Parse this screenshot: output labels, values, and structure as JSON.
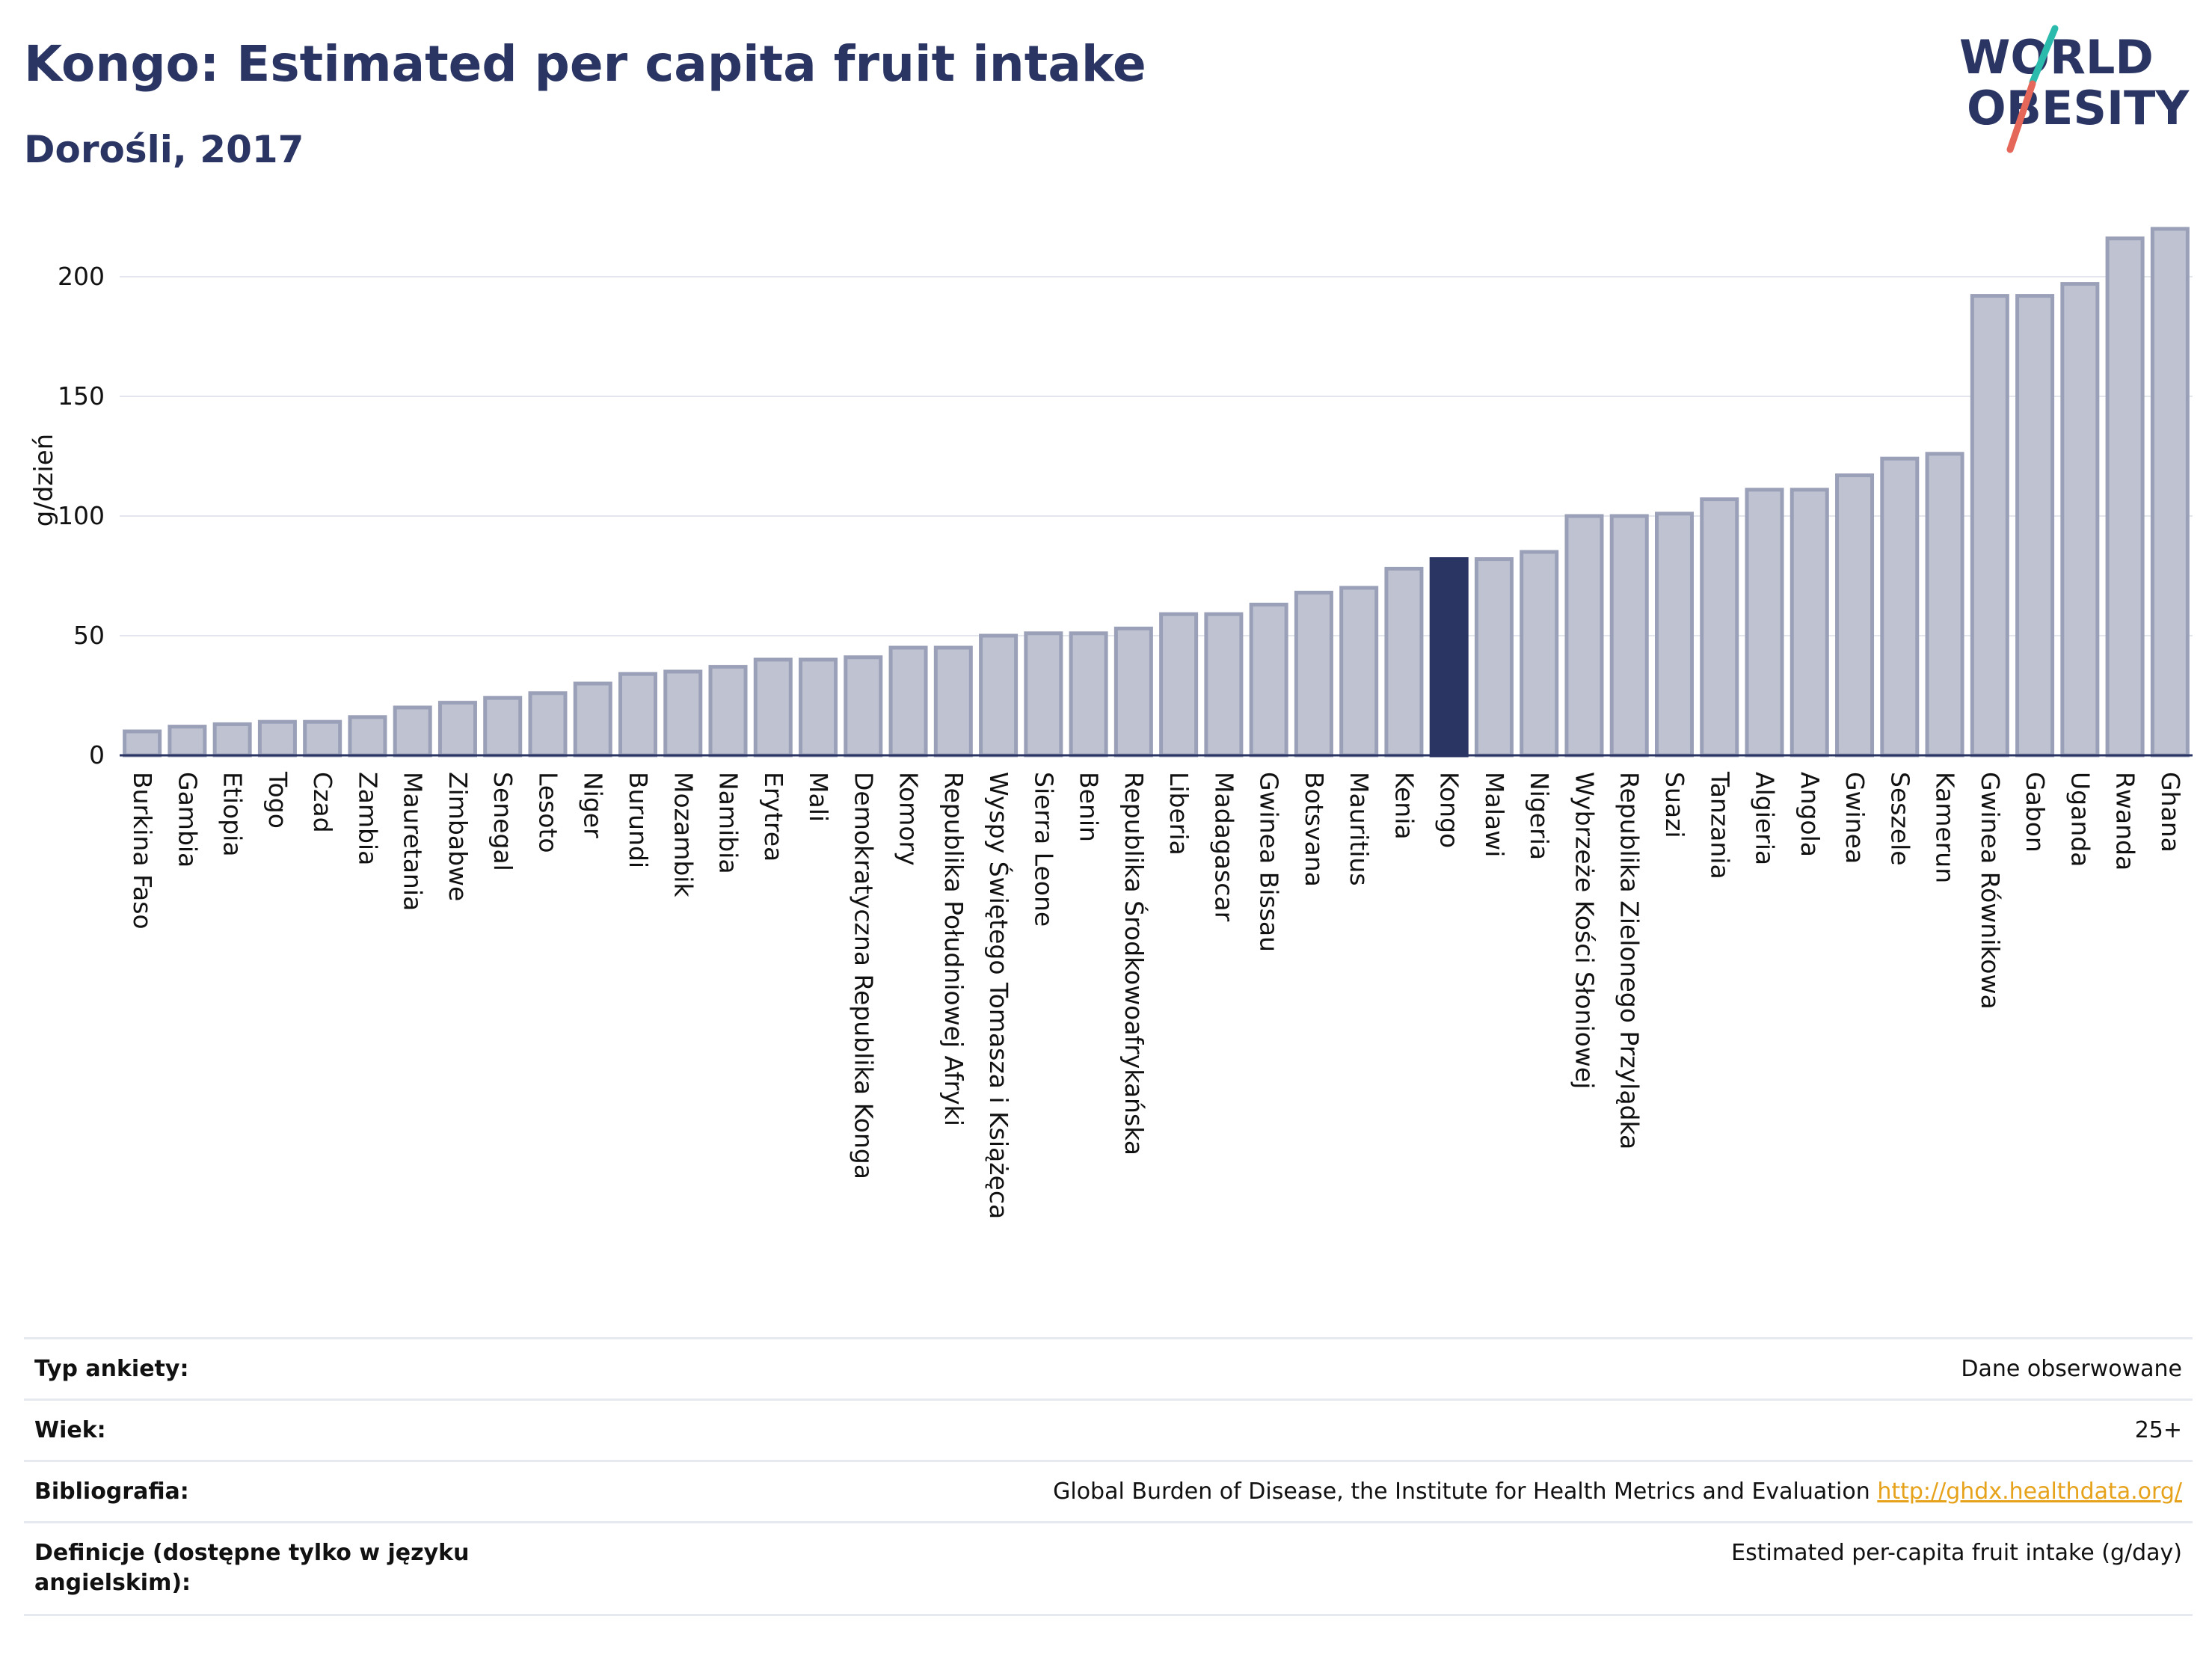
{
  "header": {
    "title": "Kongo: Estimated per capita fruit intake",
    "subtitle": "Dorośli, 2017"
  },
  "logo": {
    "line1": "WORLD",
    "line2": "OBESITY",
    "colors": {
      "text": "#2a3563",
      "slash_teal": "#2bbbad",
      "slash_red": "#e5675a"
    }
  },
  "chart_data": {
    "type": "bar",
    "ylabel": "g/dzień",
    "xlabel": "",
    "ylim": [
      0,
      230
    ],
    "yticks": [
      0,
      50,
      100,
      150,
      200
    ],
    "grid": true,
    "highlight": "Kongo",
    "colors": {
      "bar": "#bfc3d1",
      "bar_edge": "#9aa0b8",
      "highlight": "#2a3563"
    },
    "categories": [
      "Burkina Faso",
      "Gambia",
      "Etiopia",
      "Togo",
      "Czad",
      "Zambia",
      "Mauretania",
      "Zimbabwe",
      "Senegal",
      "Lesoto",
      "Niger",
      "Burundi",
      "Mozambik",
      "Namibia",
      "Erytrea",
      "Mali",
      "Demokratyczna Republika Konga",
      "Komory",
      "Republika Południowej Afryki",
      "Wyspy Świętego Tomasza i Książęca",
      "Sierra Leone",
      "Benin",
      "Republika Środkowoafrykańska",
      "Liberia",
      "Madagascar",
      "Gwinea Bissau",
      "Botsvana",
      "Mauritius",
      "Kenia",
      "Kongo",
      "Malawi",
      "Nigeria",
      "Wybrzeże Kości Słoniowej",
      "Republika Zielonego Przylądka",
      "Suazi",
      "Tanzania",
      "Algieria",
      "Angola",
      "Gwinea",
      "Seszele",
      "Kamerun",
      "Gwinea Równikowa",
      "Gabon",
      "Uganda",
      "Rwanda",
      "Ghana"
    ],
    "values": [
      10,
      12,
      13,
      14,
      14,
      16,
      20,
      22,
      24,
      26,
      30,
      34,
      35,
      37,
      40,
      40,
      41,
      45,
      45,
      50,
      51,
      51,
      53,
      59,
      59,
      63,
      68,
      70,
      78,
      82,
      82,
      85,
      100,
      100,
      101,
      107,
      111,
      111,
      117,
      124,
      126,
      192,
      192,
      197,
      216,
      220
    ]
  },
  "info": {
    "rows": [
      {
        "label": "Typ ankiety:",
        "value": "Dane obserwowane"
      },
      {
        "label": "Wiek:",
        "value": "25+"
      },
      {
        "label": "Bibliografia:",
        "value": "Global Burden of Disease, the Institute for Health Metrics and Evaluation",
        "link": "http://ghdx.healthdata.org/"
      },
      {
        "label": "Definicje (dostępne tylko w języku angielskim):",
        "value": "Estimated per-capita fruit intake (g/day)"
      }
    ]
  }
}
